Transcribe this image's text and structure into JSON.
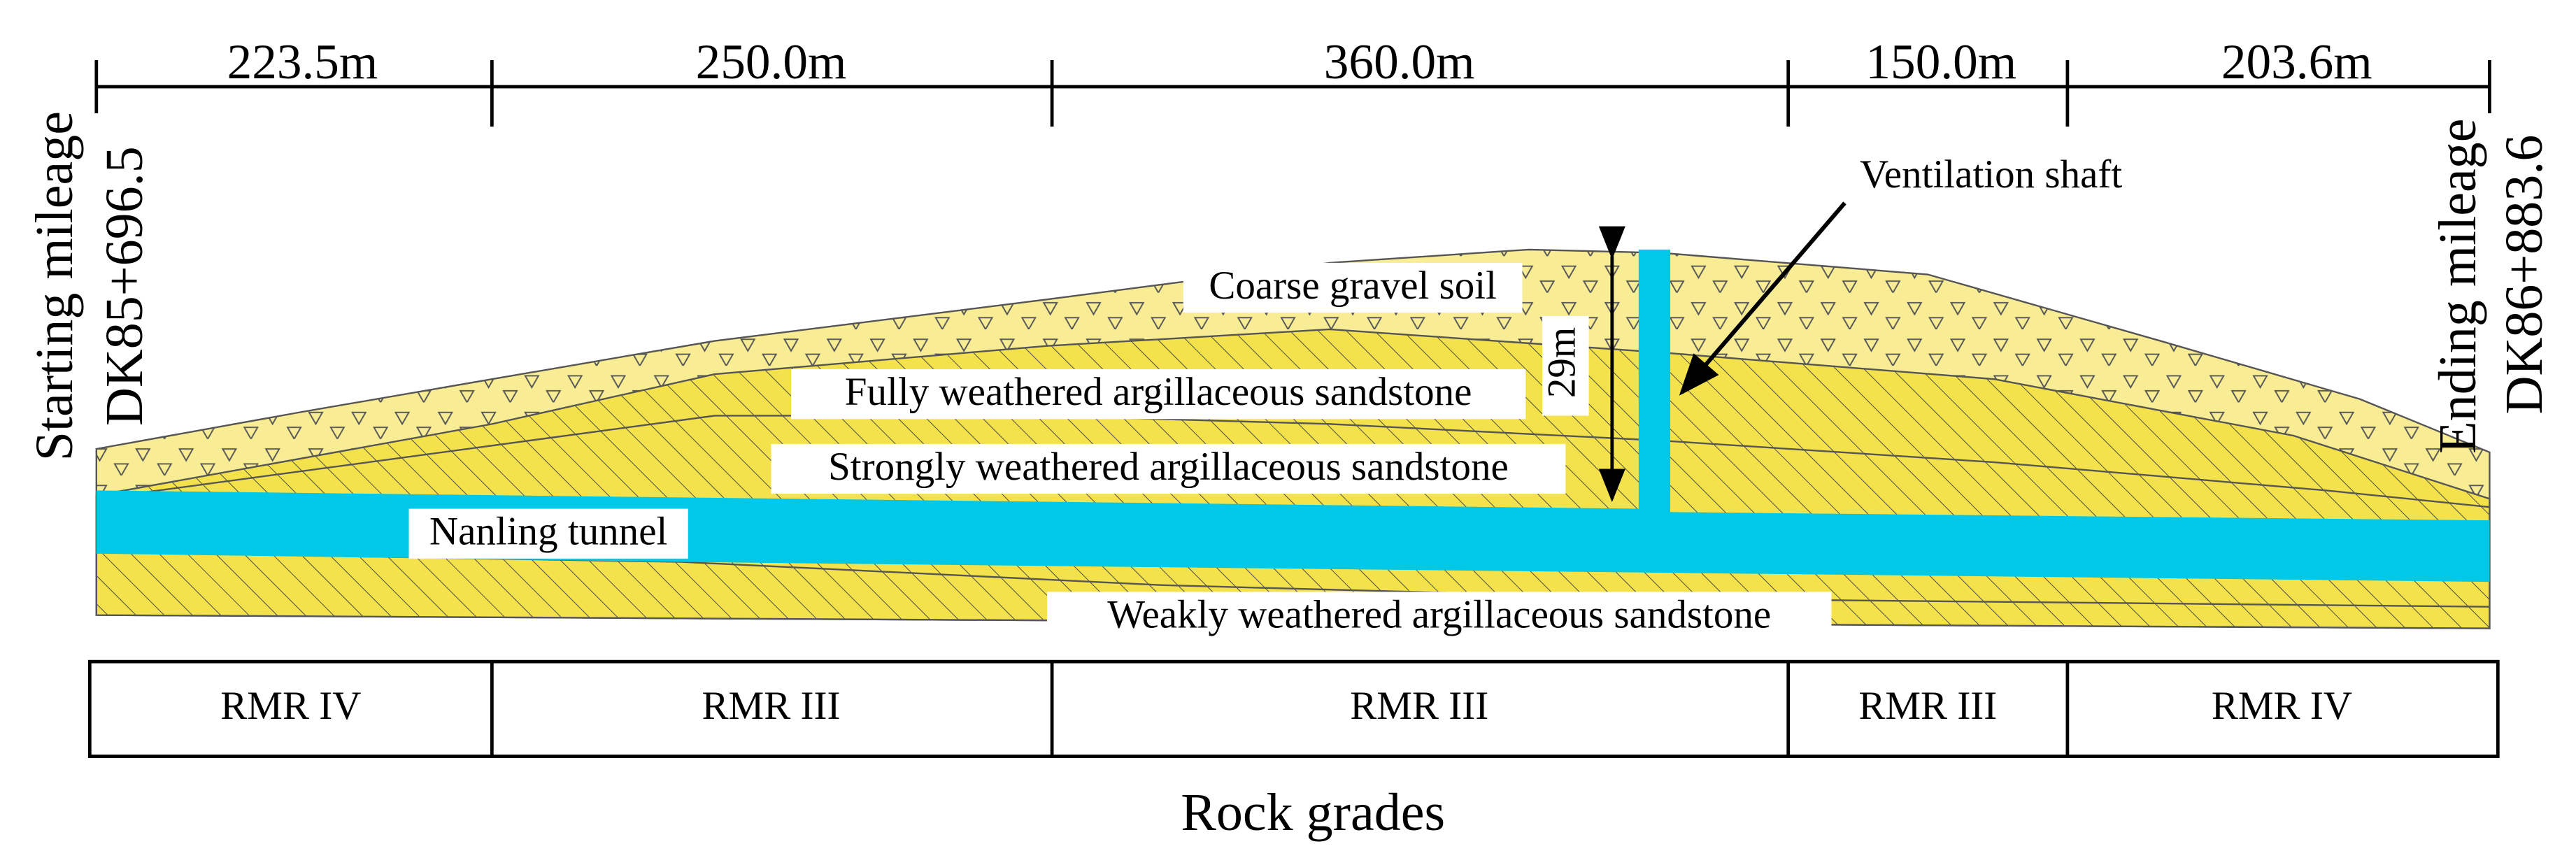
{
  "start": {
    "label": "Starting mileage",
    "mileage": "DK85+696.5"
  },
  "end": {
    "label": "Ending mileage",
    "mileage": "DK86+883.6"
  },
  "segments": [
    {
      "length": "223.5m",
      "grade": "RMR IV"
    },
    {
      "length": "250.0m",
      "grade": "RMR III"
    },
    {
      "length": "360.0m",
      "grade": "RMR III"
    },
    {
      "length": "150.0m",
      "grade": "RMR III"
    },
    {
      "length": "203.6m",
      "grade": "RMR IV"
    }
  ],
  "layers": [
    "Coarse gravel soil",
    "Fully weathered argillaceous sandstone",
    "Strongly weathered argillaceous sandstone",
    "Weakly weathered argillaceous sandstone"
  ],
  "tunnel": "Nanling tunnel",
  "shaft": {
    "label": "Ventilation shaft",
    "depth": "29m"
  },
  "caption": "Rock grades"
}
